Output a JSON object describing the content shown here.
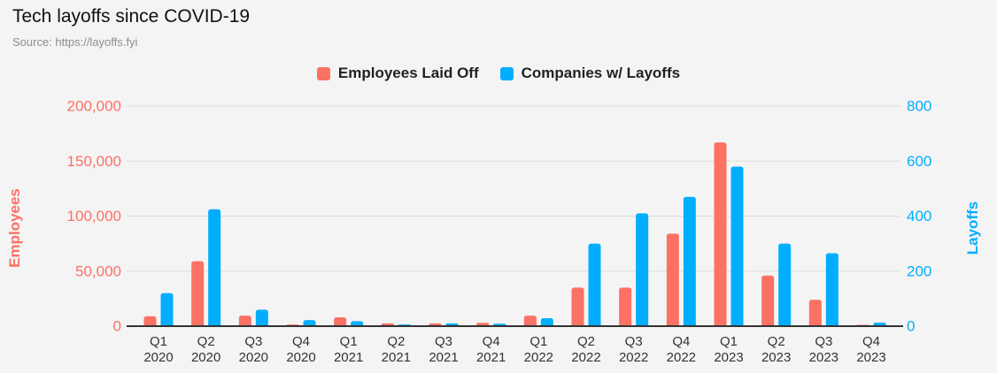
{
  "header": {
    "title": "Tech layoffs since COVID-19",
    "source": "Source: https://layoffs.fyi"
  },
  "legend": {
    "items": [
      {
        "label": "Employees Laid Off",
        "color": "#fb7164"
      },
      {
        "label": "Companies w/ Layoffs",
        "color": "#00aefd"
      }
    ]
  },
  "chart_data": {
    "type": "bar",
    "subtype": "grouped-dual-axis",
    "title": "Tech layoffs since COVID-19",
    "source": "Source: https://layoffs.fyi",
    "categories": [
      "Q1 2020",
      "Q2 2020",
      "Q3 2020",
      "Q4 2020",
      "Q1 2021",
      "Q2 2021",
      "Q3 2021",
      "Q4 2021",
      "Q1 2022",
      "Q2 2022",
      "Q3 2022",
      "Q4 2022",
      "Q1 2023",
      "Q2 2023",
      "Q3 2023",
      "Q4 2023"
    ],
    "series": [
      {
        "name": "Employees Laid Off",
        "axis": "left",
        "color": "#fb7164",
        "values": [
          9000,
          59000,
          9500,
          1500,
          8000,
          2500,
          2500,
          3000,
          9500,
          35000,
          35000,
          84000,
          167000,
          46000,
          24000,
          1200
        ]
      },
      {
        "name": "Companies w/ Layoffs",
        "axis": "right",
        "color": "#00aefd",
        "values": [
          120,
          425,
          60,
          22,
          18,
          6,
          10,
          9,
          29,
          300,
          410,
          470,
          580,
          300,
          265,
          13
        ]
      }
    ],
    "left_axis": {
      "label": "Employees",
      "color": "#fb7164",
      "min": 0,
      "max": 200000,
      "tick_step": 50000,
      "tick_labels": [
        "0",
        "50,000",
        "100,000",
        "150,000",
        "200,000"
      ]
    },
    "right_axis": {
      "label": "Layoffs",
      "color": "#00aefd",
      "min": 0,
      "max": 800,
      "tick_step": 200,
      "tick_labels": [
        "0",
        "200",
        "400",
        "600",
        "800"
      ]
    },
    "grid": true,
    "grid_color": "#dcdcdc",
    "baseline_color": "#333333",
    "x_tick_color": "#333333",
    "legend_position": "top-center"
  }
}
